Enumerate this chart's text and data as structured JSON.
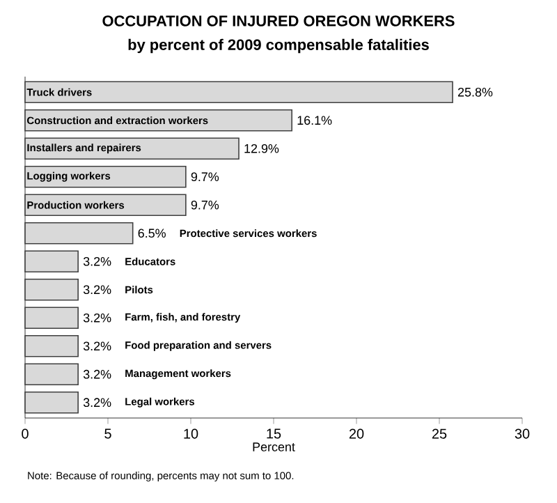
{
  "chart_data": {
    "type": "bar",
    "orientation": "horizontal",
    "title": "OCCUPATION OF INJURED OREGON WORKERS",
    "subtitle": "by percent of 2009 compensable fatalities",
    "xlabel": "Percent",
    "categories": [
      "Truck drivers",
      "Construction and extraction workers",
      "Installers and repairers",
      "Logging workers",
      "Production workers",
      "Protective services workers",
      "Educators",
      "Pilots",
      "Farm, fish, and forestry",
      "Food preparation and servers",
      "Management workers",
      "Legal workers"
    ],
    "values": [
      25.8,
      16.1,
      12.9,
      9.7,
      9.7,
      6.5,
      3.2,
      3.2,
      3.2,
      3.2,
      3.2,
      3.2
    ],
    "value_labels": [
      "25.8%",
      "16.1%",
      "12.9%",
      "9.7%",
      "9.7%",
      "6.5%",
      "3.2%",
      "3.2%",
      "3.2%",
      "3.2%",
      "3.2%",
      "3.2%"
    ],
    "color": "#d9d9d9",
    "xlim": [
      0,
      30
    ],
    "xticks": [
      0,
      5,
      10,
      15,
      20,
      25,
      30
    ],
    "annotations": [
      "Note: Because of rounding, percents may not sum to 100."
    ]
  }
}
